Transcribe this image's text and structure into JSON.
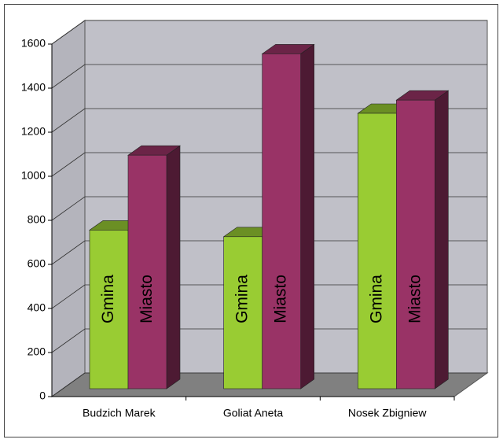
{
  "chart_data": {
    "type": "bar3d",
    "categories": [
      "Budzich Marek",
      "Goliat Aneta",
      "Nosek Zbigniew"
    ],
    "series": [
      {
        "name": "Gmina",
        "color": "#99cc33",
        "values": [
          720,
          690,
          1250
        ]
      },
      {
        "name": "Miasto",
        "color": "#993366",
        "values": [
          1060,
          1520,
          1310
        ]
      }
    ],
    "ylim": [
      0,
      1600
    ],
    "yticks": [
      0,
      200,
      400,
      600,
      800,
      1000,
      1200,
      1400,
      1600
    ],
    "grid": true
  }
}
